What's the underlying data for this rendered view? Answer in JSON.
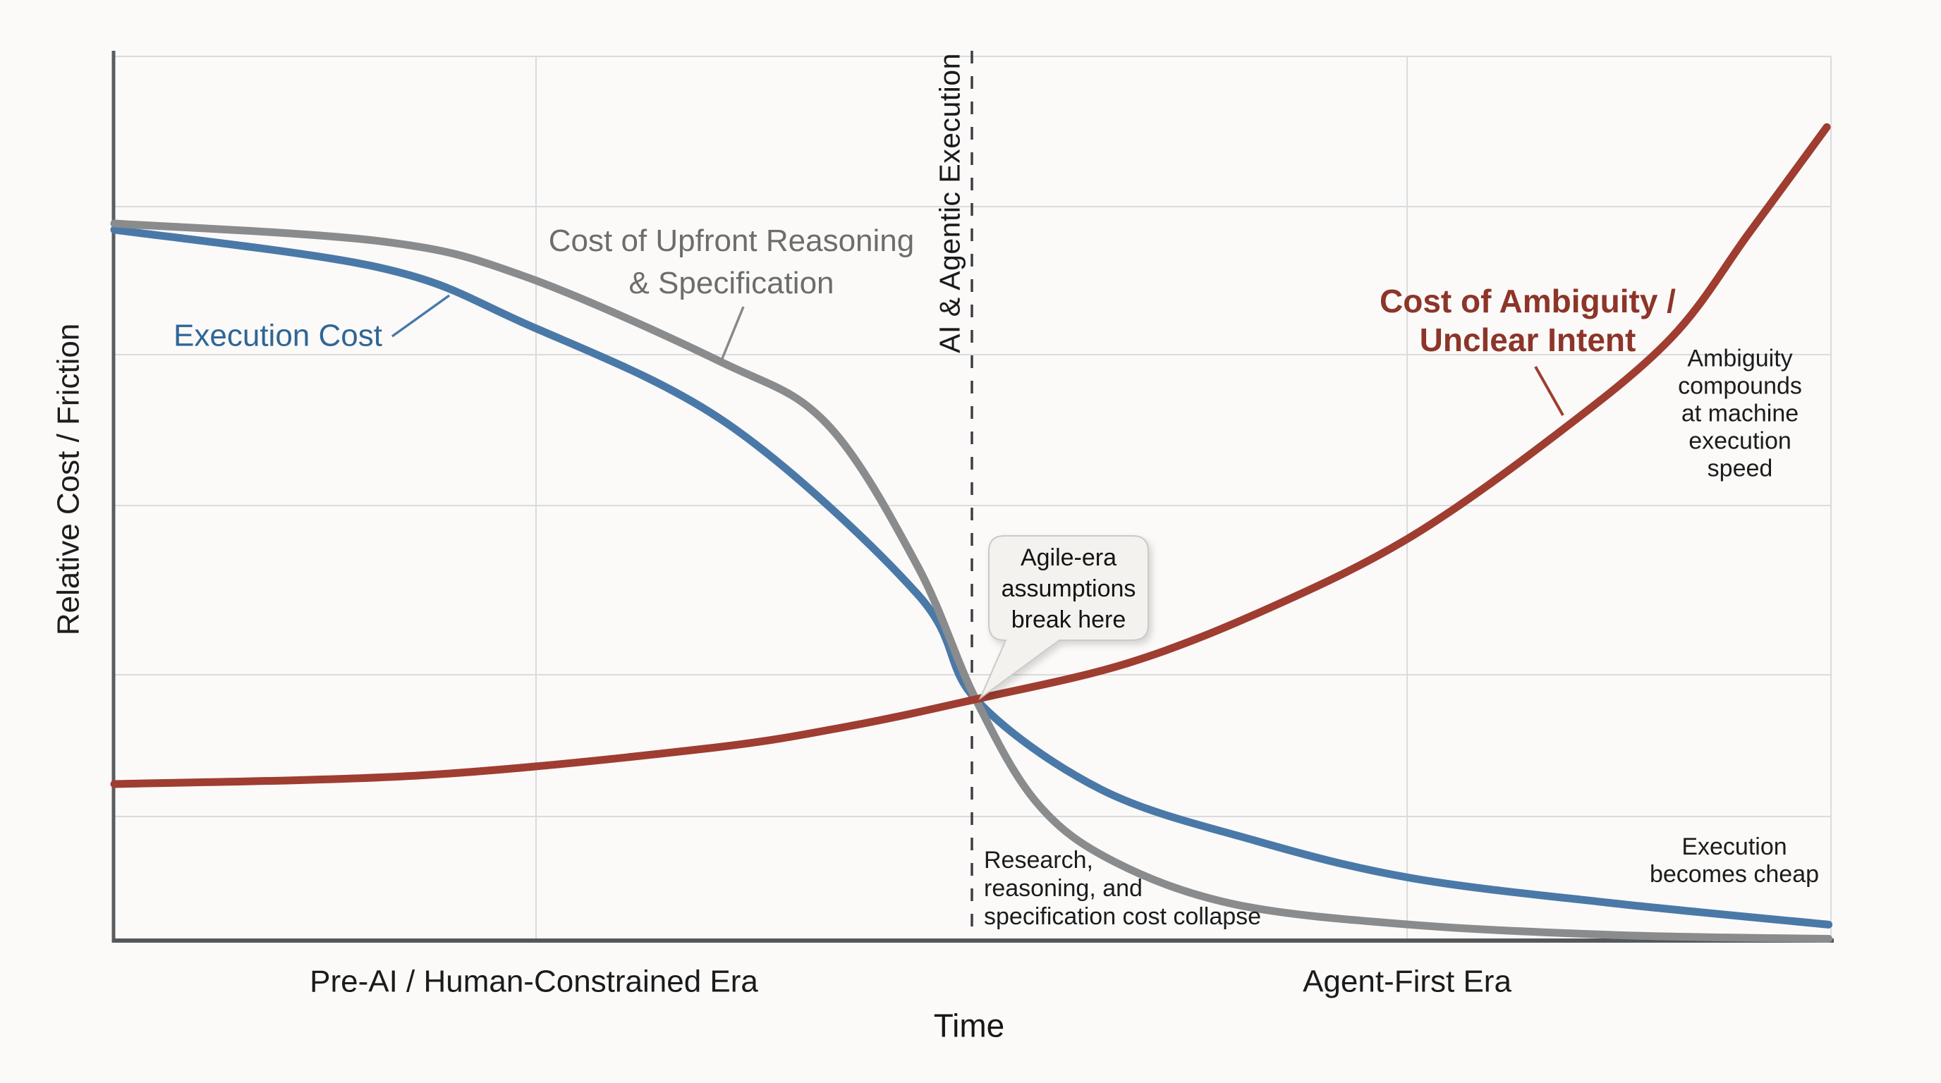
{
  "chart_data": {
    "type": "line",
    "title": "",
    "xlabel": "Time",
    "ylabel": "Relative Cost / Friction",
    "x_range": [
      0,
      100
    ],
    "y_range": [
      0,
      100
    ],
    "grid": true,
    "legend_position": "inline-curve-labels",
    "era_labels": [
      "Pre-AI / Human-Constrained Era",
      "Agent-First Era"
    ],
    "milestone": {
      "label": "AI & Agentic Execution",
      "x": 50,
      "style": "dashed-vertical"
    },
    "crossing_point": {
      "x": 50,
      "y": 27
    },
    "series": [
      {
        "name": "Execution Cost",
        "slug": "execution-cost-curve",
        "color": "#4a79a8",
        "label_color": "#2f6695",
        "points": [
          [
            0,
            80.4
          ],
          [
            15.5,
            76.1
          ],
          [
            23.8,
            69.9
          ],
          [
            35.7,
            58.5
          ],
          [
            46.8,
            39.2
          ],
          [
            50.2,
            27.3
          ],
          [
            57.5,
            17.1
          ],
          [
            66.5,
            11.3
          ],
          [
            75.5,
            7.1
          ],
          [
            87.0,
            4.3
          ],
          [
            99.9,
            1.8
          ]
        ]
      },
      {
        "name": "Cost of Upfront Reasoning & Specification",
        "slug": "upfront-reasoning-curve",
        "color": "#8a8b8c",
        "label_color": "#6d6d6d",
        "points": [
          [
            0,
            81.1
          ],
          [
            15.5,
            79.1
          ],
          [
            23.8,
            75.2
          ],
          [
            35.3,
            65.5
          ],
          [
            41.5,
            58.5
          ],
          [
            46.8,
            42.4
          ],
          [
            50.2,
            27.3
          ],
          [
            53.8,
            15.5
          ],
          [
            58.3,
            8.9
          ],
          [
            65.3,
            4.1
          ],
          [
            75.5,
            1.8
          ],
          [
            87.9,
            0.6
          ],
          [
            99.9,
            0.2
          ]
        ]
      },
      {
        "name": "Cost of Ambiguity / Unclear Intent",
        "slug": "ambiguity-curve",
        "color": "#9f3d31",
        "label_color": "#8d3529",
        "points": [
          [
            0,
            17.7
          ],
          [
            18.0,
            18.7
          ],
          [
            34.4,
            21.7
          ],
          [
            42.7,
            24.2
          ],
          [
            50.2,
            27.3
          ],
          [
            59.1,
            31.4
          ],
          [
            67.3,
            37.6
          ],
          [
            75.5,
            45.6
          ],
          [
            83.8,
            56.9
          ],
          [
            90.7,
            68.1
          ],
          [
            95.3,
            80.1
          ],
          [
            99.8,
            92.0
          ]
        ]
      }
    ],
    "annotations": [
      {
        "text": "Agile-era assumptions break here",
        "type": "callout-bubble",
        "points_to": "crossing_point"
      },
      {
        "text": "Ambiguity compounds at machine execution speed",
        "near": "ambiguity-curve upper right"
      },
      {
        "text": "Research, reasoning, and specification cost collapse",
        "near": "below crossing, left of dashed line"
      },
      {
        "text": "Execution becomes cheap",
        "near": "execution-cost-curve lower right"
      }
    ]
  },
  "labels": {
    "y_axis": "Relative Cost / Friction",
    "x_axis": "Time",
    "era_pre": "Pre-AI / Human-Constrained Era",
    "era_agent": "Agent-First Era",
    "execution_cost": "Execution Cost",
    "upfront": "Cost of Upfront Reasoning\n& Specification",
    "ai_agentic": "AI & Agentic Execution",
    "ambiguity": "Cost of Ambiguity /\nUnclear Intent",
    "ambiguity_note": "Ambiguity compounds\nat machine execution\nspeed",
    "research_note": "Research,\nreasoning, and\nspecification cost collapse",
    "cheap_note": "Execution\nbecomes cheap",
    "bubble": "Agile-era\nassumptions\nbreak here"
  },
  "colors": {
    "background": "#fbfaf9",
    "gridline": "#d9dbdd",
    "axis": "#55585b",
    "dashed_line": "#3c3e42",
    "bubble_fill": "#f3f2ef",
    "bubble_border": "#cbcac6",
    "blue": "#4a79a8",
    "gray": "#8a8b8c",
    "red": "#9f3d31"
  }
}
